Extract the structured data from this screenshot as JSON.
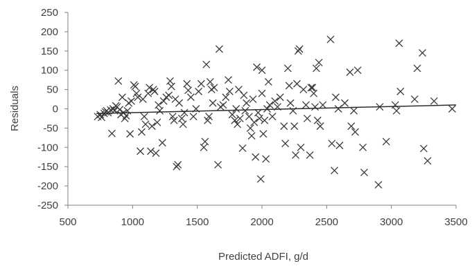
{
  "chart_data": {
    "type": "scatter",
    "title": "",
    "xlabel": "Predicted ADFI, g/d",
    "ylabel": "Residuals",
    "xlim": [
      500,
      3500
    ],
    "ylim": [
      -250,
      250
    ],
    "x_ticks": [
      500,
      1000,
      1500,
      2000,
      2500,
      3000,
      3500
    ],
    "y_ticks": [
      -250,
      -200,
      -150,
      -100,
      -50,
      0,
      50,
      100,
      150,
      200,
      250
    ],
    "grid": false,
    "legend": "none",
    "marker": "x",
    "marker_color": "#3a3a3a",
    "trendline": {
      "x": [
        720,
        3500
      ],
      "y": [
        -12,
        10
      ]
    },
    "points": [
      [
        730,
        -20
      ],
      [
        750,
        -15
      ],
      [
        760,
        -22
      ],
      [
        780,
        -12
      ],
      [
        790,
        -8
      ],
      [
        800,
        -5
      ],
      [
        810,
        -10
      ],
      [
        830,
        -3
      ],
      [
        840,
        -64
      ],
      [
        850,
        0
      ],
      [
        860,
        -5
      ],
      [
        870,
        8
      ],
      [
        880,
        5
      ],
      [
        890,
        72
      ],
      [
        900,
        -2
      ],
      [
        910,
        -15
      ],
      [
        920,
        30
      ],
      [
        930,
        -10
      ],
      [
        940,
        -25
      ],
      [
        950,
        -18
      ],
      [
        960,
        -5
      ],
      [
        970,
        15
      ],
      [
        980,
        -65
      ],
      [
        990,
        20
      ],
      [
        1010,
        62
      ],
      [
        1020,
        58
      ],
      [
        1030,
        40
      ],
      [
        1040,
        30
      ],
      [
        1060,
        -110
      ],
      [
        1070,
        -60
      ],
      [
        1080,
        25
      ],
      [
        1090,
        -20
      ],
      [
        1100,
        -40
      ],
      [
        1120,
        40
      ],
      [
        1130,
        55
      ],
      [
        1140,
        -110
      ],
      [
        1150,
        -45
      ],
      [
        1160,
        50
      ],
      [
        1170,
        45
      ],
      [
        1180,
        -115
      ],
      [
        1190,
        -35
      ],
      [
        1200,
        10
      ],
      [
        1210,
        -5
      ],
      [
        1230,
        -88
      ],
      [
        1240,
        20
      ],
      [
        1260,
        30
      ],
      [
        1280,
        35
      ],
      [
        1290,
        72
      ],
      [
        1300,
        58
      ],
      [
        1310,
        -20
      ],
      [
        1320,
        -30
      ],
      [
        1330,
        25
      ],
      [
        1340,
        -150
      ],
      [
        1350,
        -145
      ],
      [
        1360,
        15
      ],
      [
        1380,
        -25
      ],
      [
        1390,
        -40
      ],
      [
        1400,
        -10
      ],
      [
        1420,
        65
      ],
      [
        1430,
        48
      ],
      [
        1450,
        30
      ],
      [
        1470,
        -20
      ],
      [
        1490,
        0
      ],
      [
        1510,
        45
      ],
      [
        1530,
        65
      ],
      [
        1550,
        -100
      ],
      [
        1560,
        -85
      ],
      [
        1570,
        115
      ],
      [
        1580,
        -30
      ],
      [
        1590,
        -20
      ],
      [
        1600,
        70
      ],
      [
        1610,
        50
      ],
      [
        1620,
        15
      ],
      [
        1630,
        55
      ],
      [
        1660,
        -145
      ],
      [
        1670,
        155
      ],
      [
        1680,
        5
      ],
      [
        1700,
        10
      ],
      [
        1720,
        30
      ],
      [
        1740,
        75
      ],
      [
        1750,
        45
      ],
      [
        1770,
        -15
      ],
      [
        1790,
        -30
      ],
      [
        1800,
        0
      ],
      [
        1810,
        -40
      ],
      [
        1820,
        50
      ],
      [
        1830,
        -25
      ],
      [
        1850,
        -102
      ],
      [
        1860,
        35
      ],
      [
        1870,
        -5
      ],
      [
        1880,
        15
      ],
      [
        1900,
        -20
      ],
      [
        1910,
        -50
      ],
      [
        1920,
        -70
      ],
      [
        1930,
        25
      ],
      [
        1940,
        -35
      ],
      [
        1950,
        -125
      ],
      [
        1960,
        108
      ],
      [
        1970,
        -10
      ],
      [
        1980,
        -25
      ],
      [
        1990,
        -182
      ],
      [
        2000,
        100
      ],
      [
        2000,
        40
      ],
      [
        2010,
        -65
      ],
      [
        2020,
        -30
      ],
      [
        2030,
        -130
      ],
      [
        2040,
        0
      ],
      [
        2050,
        70
      ],
      [
        2060,
        10
      ],
      [
        2080,
        -20
      ],
      [
        2100,
        20
      ],
      [
        2120,
        5
      ],
      [
        2140,
        30
      ],
      [
        2170,
        -45
      ],
      [
        2180,
        -90
      ],
      [
        2200,
        105
      ],
      [
        2210,
        60
      ],
      [
        2220,
        15
      ],
      [
        2240,
        -5
      ],
      [
        2250,
        -45
      ],
      [
        2260,
        -120
      ],
      [
        2270,
        65
      ],
      [
        2280,
        150
      ],
      [
        2290,
        155
      ],
      [
        2300,
        -100
      ],
      [
        2320,
        50
      ],
      [
        2340,
        10
      ],
      [
        2350,
        -25
      ],
      [
        2370,
        -120
      ],
      [
        2380,
        55
      ],
      [
        2390,
        55
      ],
      [
        2400,
        40
      ],
      [
        2410,
        5
      ],
      [
        2420,
        105
      ],
      [
        2430,
        -30
      ],
      [
        2440,
        120
      ],
      [
        2450,
        -45
      ],
      [
        2470,
        10
      ],
      [
        2530,
        180
      ],
      [
        2540,
        -90
      ],
      [
        2560,
        -160
      ],
      [
        2570,
        30
      ],
      [
        2590,
        0
      ],
      [
        2600,
        -95
      ],
      [
        2640,
        15
      ],
      [
        2680,
        95
      ],
      [
        2690,
        -45
      ],
      [
        2710,
        -5
      ],
      [
        2720,
        -60
      ],
      [
        2740,
        100
      ],
      [
        2780,
        -100
      ],
      [
        2790,
        -165
      ],
      [
        2900,
        -197
      ],
      [
        2910,
        5
      ],
      [
        2960,
        -85
      ],
      [
        3030,
        10
      ],
      [
        3040,
        -5
      ],
      [
        3060,
        170
      ],
      [
        3070,
        45
      ],
      [
        3180,
        25
      ],
      [
        3200,
        105
      ],
      [
        3240,
        145
      ],
      [
        3250,
        -103
      ],
      [
        3280,
        -135
      ],
      [
        3330,
        20
      ],
      [
        3470,
        0
      ]
    ]
  }
}
